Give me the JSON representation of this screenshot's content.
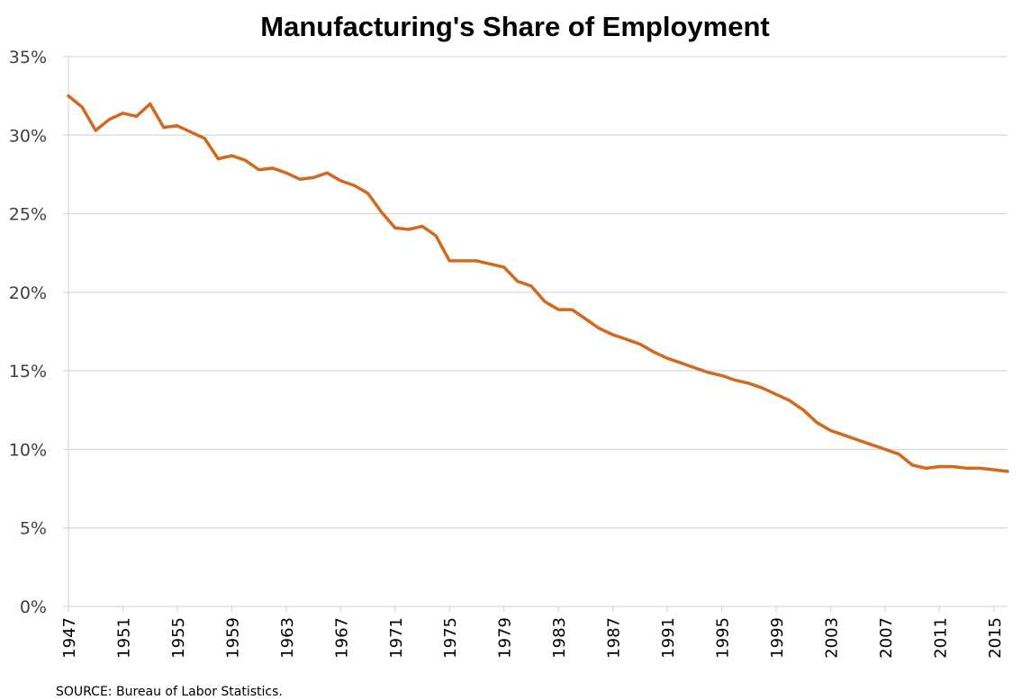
{
  "chart_data": {
    "type": "line",
    "title": "Manufacturing's Share of Employment",
    "xlabel": "",
    "ylabel": "",
    "source": "SOURCE: Bureau of Labor Statistics.",
    "ylim": [
      0,
      35
    ],
    "yticks": [
      0,
      5,
      10,
      15,
      20,
      25,
      30,
      35
    ],
    "ytick_labels": [
      "0%",
      "5%",
      "10%",
      "15%",
      "20%",
      "25%",
      "30%",
      "35%"
    ],
    "xlim": [
      1947,
      2016
    ],
    "xticks": [
      1947,
      1951,
      1955,
      1959,
      1963,
      1967,
      1971,
      1975,
      1979,
      1983,
      1987,
      1991,
      1995,
      1999,
      2003,
      2007,
      2011,
      2015
    ],
    "xtick_labels": [
      "1947",
      "1951",
      "1955",
      "1959",
      "1963",
      "1967",
      "1971",
      "1975",
      "1979",
      "1983",
      "1987",
      "1991",
      "1995",
      "1999",
      "2003",
      "2007",
      "2011",
      "2015"
    ],
    "grid": true,
    "legend": "none",
    "series": [
      {
        "name": "Manufacturing share of employment (%)",
        "color": "#D2691E",
        "x": [
          1947,
          1948,
          1949,
          1950,
          1951,
          1952,
          1953,
          1954,
          1955,
          1956,
          1957,
          1958,
          1959,
          1960,
          1961,
          1962,
          1963,
          1964,
          1965,
          1966,
          1967,
          1968,
          1969,
          1970,
          1971,
          1972,
          1973,
          1974,
          1975,
          1976,
          1977,
          1978,
          1979,
          1980,
          1981,
          1982,
          1983,
          1984,
          1985,
          1986,
          1987,
          1988,
          1989,
          1990,
          1991,
          1992,
          1993,
          1994,
          1995,
          1996,
          1997,
          1998,
          1999,
          2000,
          2001,
          2002,
          2003,
          2004,
          2005,
          2006,
          2007,
          2008,
          2009,
          2010,
          2011,
          2012,
          2013,
          2014,
          2015,
          2016
        ],
        "values": [
          32.5,
          31.8,
          30.3,
          31.0,
          31.4,
          31.2,
          32.0,
          30.5,
          30.6,
          30.2,
          29.8,
          28.5,
          28.7,
          28.4,
          27.8,
          27.9,
          27.6,
          27.2,
          27.3,
          27.6,
          27.1,
          26.8,
          26.3,
          25.1,
          24.1,
          24.0,
          24.2,
          23.6,
          22.0,
          22.0,
          22.0,
          21.8,
          21.6,
          20.7,
          20.4,
          19.4,
          18.9,
          18.9,
          18.3,
          17.7,
          17.3,
          17.0,
          16.7,
          16.2,
          15.8,
          15.5,
          15.2,
          14.9,
          14.7,
          14.4,
          14.2,
          13.9,
          13.5,
          13.1,
          12.5,
          11.7,
          11.2,
          10.9,
          10.6,
          10.3,
          10.0,
          9.7,
          9.0,
          8.8,
          8.9,
          8.9,
          8.8,
          8.8,
          8.7,
          8.6
        ]
      }
    ]
  },
  "colors": {
    "line": "#D2691E",
    "grid": "#D9D9D9",
    "axis": "#D9D9D9"
  }
}
